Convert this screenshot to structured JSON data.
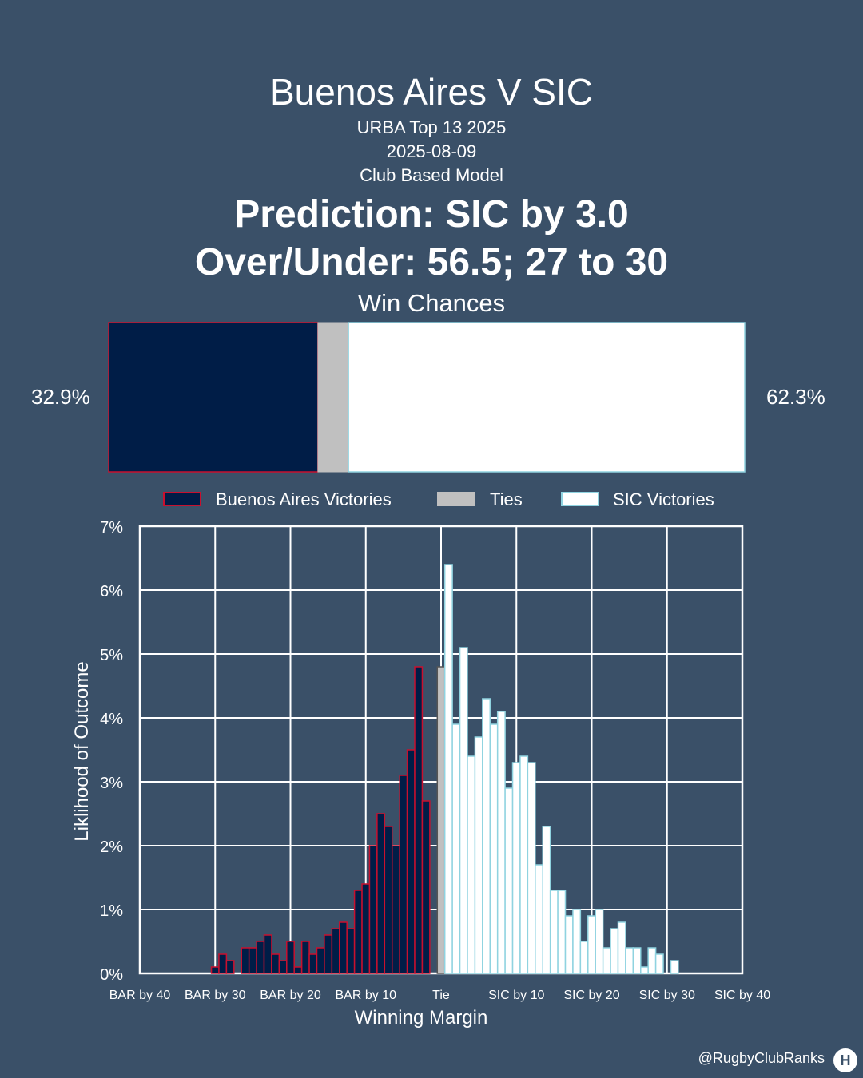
{
  "header": {
    "title": "Buenos Aires V SIC",
    "competition": "URBA Top 13 2025",
    "date": "2025-08-09",
    "model": "Club Based Model",
    "prediction": "Prediction: SIC by 3.0",
    "over_under": "Over/Under: 56.5; 27 to 30"
  },
  "win_chances": {
    "title": "Win Chances",
    "home_pct_label": "32.9%",
    "away_pct_label": "62.3%",
    "home": 32.9,
    "tie": 4.8,
    "away": 62.3
  },
  "legend": {
    "items": [
      {
        "label": "Buenos Aires Victories",
        "color": "#001d47",
        "edge": "#c8102e"
      },
      {
        "label": "Ties",
        "color": "#c0c0c0",
        "edge": "#c0c0c0"
      },
      {
        "label": "SIC Victories",
        "color": "#ffffff",
        "edge": "#8fd3e0"
      }
    ]
  },
  "colors": {
    "background": "#3a5068",
    "home_fill": "#001d47",
    "home_edge": "#c8102e",
    "tie_fill": "#c0c0c0",
    "tie_edge": "#555555",
    "away_fill": "#ffffff",
    "away_edge": "#8fd3e0"
  },
  "chart_data": {
    "type": "bar",
    "xlabel": "Winning Margin",
    "ylabel": "Liklihood of Outcome",
    "xlim": [
      -40,
      40
    ],
    "ylim": [
      0,
      7
    ],
    "x_ticks": [
      {
        "value": -40,
        "label": "BAR by 40"
      },
      {
        "value": -30,
        "label": "BAR by 30"
      },
      {
        "value": -20,
        "label": "BAR by 20"
      },
      {
        "value": -10,
        "label": "BAR by 10"
      },
      {
        "value": 0,
        "label": "Tie"
      },
      {
        "value": 10,
        "label": "SIC by 10"
      },
      {
        "value": 20,
        "label": "SIC by 20"
      },
      {
        "value": 30,
        "label": "SIC by 30"
      },
      {
        "value": 40,
        "label": "SIC by 40"
      }
    ],
    "y_ticks": [
      {
        "value": 0,
        "label": "0%"
      },
      {
        "value": 1,
        "label": "1%"
      },
      {
        "value": 2,
        "label": "2%"
      },
      {
        "value": 3,
        "label": "3%"
      },
      {
        "value": 4,
        "label": "4%"
      },
      {
        "value": 5,
        "label": "5%"
      },
      {
        "value": 6,
        "label": "6%"
      },
      {
        "value": 7,
        "label": "7%"
      }
    ],
    "grid": true,
    "legend_position": "top",
    "series": [
      {
        "name": "Buenos Aires Victories",
        "x": [
          -30,
          -29,
          -28,
          -27,
          -26,
          -25,
          -24,
          -23,
          -22,
          -21,
          -20,
          -19,
          -18,
          -17,
          -16,
          -15,
          -14,
          -13,
          -12,
          -11,
          -10,
          -9,
          -8,
          -7,
          -6,
          -5,
          -4,
          -3,
          -2,
          -1
        ],
        "values": [
          0.1,
          0.3,
          0.2,
          0.0,
          0.4,
          0.4,
          0.5,
          0.6,
          0.3,
          0.2,
          0.5,
          0.1,
          0.5,
          0.3,
          0.4,
          0.6,
          0.7,
          0.8,
          0.7,
          1.3,
          1.4,
          2.0,
          2.5,
          2.3,
          2.0,
          3.1,
          3.5,
          4.8,
          2.7,
          0.0
        ]
      },
      {
        "name": "Ties",
        "x": [
          0
        ],
        "values": [
          4.8
        ]
      },
      {
        "name": "SIC Victories",
        "x": [
          1,
          2,
          3,
          4,
          5,
          6,
          7,
          8,
          9,
          10,
          11,
          12,
          13,
          14,
          15,
          16,
          17,
          18,
          19,
          20,
          21,
          22,
          23,
          24,
          25,
          26,
          27,
          28,
          29,
          30,
          31,
          32
        ],
        "values": [
          6.4,
          3.9,
          5.1,
          3.4,
          3.7,
          4.3,
          3.9,
          4.1,
          2.9,
          3.3,
          3.4,
          3.3,
          1.7,
          2.3,
          1.3,
          1.3,
          0.9,
          1.0,
          0.5,
          0.9,
          1.0,
          0.4,
          0.7,
          0.8,
          0.4,
          0.4,
          0.1,
          0.4,
          0.3,
          0.0,
          0.2,
          0.0
        ]
      }
    ]
  },
  "footer": {
    "handle": "@RugbyClubRanks",
    "logo_glyph": "H"
  }
}
